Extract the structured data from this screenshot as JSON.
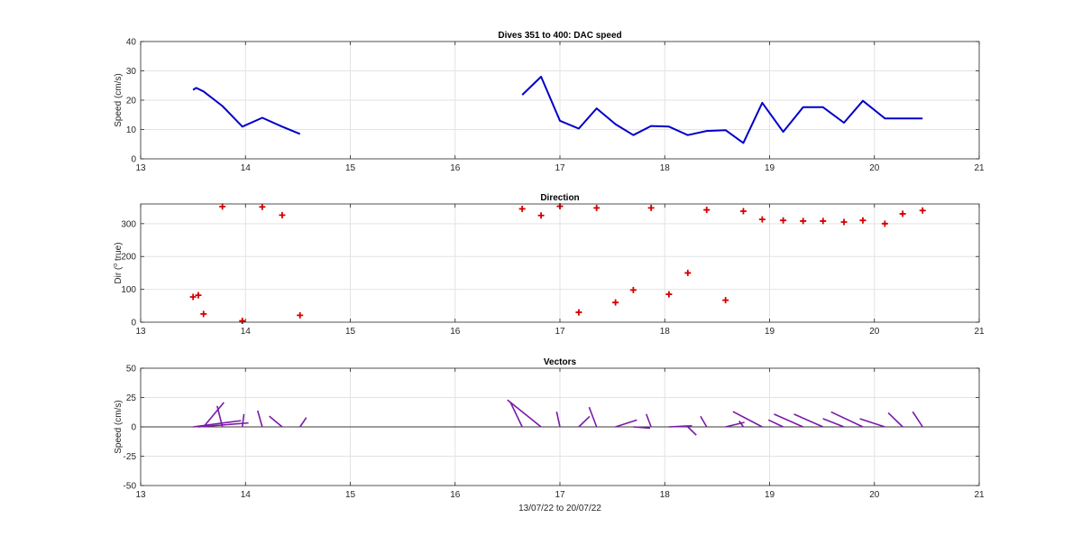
{
  "chart_data": [
    {
      "type": "line",
      "title": "Dives 351 to 400: DAC speed",
      "xlabel": "",
      "ylabel": "Speed (cm/s)",
      "xlim": [
        13,
        21
      ],
      "ylim": [
        0,
        40
      ],
      "xticks": [
        "13",
        "14",
        "15",
        "16",
        "17",
        "18",
        "19",
        "20",
        "21"
      ],
      "yticks": [
        "0",
        "10",
        "20",
        "30",
        "40"
      ],
      "grid": true,
      "series_color": "#0000c8",
      "segments": [
        [
          [
            13.5,
            23.5
          ],
          [
            13.53,
            24.2
          ],
          [
            13.6,
            23.0
          ],
          [
            13.78,
            18.0
          ],
          [
            13.97,
            11.0
          ],
          [
            14.16,
            14.0
          ],
          [
            14.35,
            11.0
          ],
          [
            14.52,
            8.5
          ]
        ],
        [
          [
            16.64,
            21.8
          ],
          [
            16.82,
            28.0
          ],
          [
            17.0,
            13.0
          ],
          [
            17.18,
            10.3
          ],
          [
            17.35,
            17.2
          ],
          [
            17.53,
            11.8
          ],
          [
            17.7,
            8.1
          ],
          [
            17.87,
            11.2
          ],
          [
            18.04,
            11.0
          ],
          [
            18.22,
            8.1
          ],
          [
            18.4,
            9.5
          ],
          [
            18.58,
            9.8
          ],
          [
            18.75,
            5.4
          ],
          [
            18.93,
            19.1
          ],
          [
            19.13,
            9.2
          ],
          [
            19.32,
            17.6
          ],
          [
            19.51,
            17.6
          ],
          [
            19.71,
            12.3
          ],
          [
            19.89,
            19.8
          ],
          [
            20.1,
            13.8
          ],
          [
            20.27,
            13.8
          ],
          [
            20.46,
            13.8
          ]
        ]
      ]
    },
    {
      "type": "scatter",
      "title": "Direction",
      "xlabel": "",
      "ylabel": "Dir (° true)",
      "ylabel_parts": [
        "Dir (",
        "o",
        " true)"
      ],
      "xlim": [
        13,
        21
      ],
      "ylim": [
        0,
        360
      ],
      "xticks": [
        "13",
        "14",
        "15",
        "16",
        "17",
        "18",
        "19",
        "20",
        "21"
      ],
      "yticks": [
        "0",
        "100",
        "200",
        "300"
      ],
      "grid": true,
      "marker": "+",
      "series_color": "#d40000",
      "points": [
        [
          13.5,
          77
        ],
        [
          13.55,
          82
        ],
        [
          13.6,
          25
        ],
        [
          13.78,
          352
        ],
        [
          13.97,
          4
        ],
        [
          14.16,
          351
        ],
        [
          14.35,
          326
        ],
        [
          14.52,
          21
        ],
        [
          16.64,
          345
        ],
        [
          16.82,
          325
        ],
        [
          17.0,
          353
        ],
        [
          17.18,
          30
        ],
        [
          17.35,
          348
        ],
        [
          17.53,
          60
        ],
        [
          17.7,
          98
        ],
        [
          17.87,
          348
        ],
        [
          18.04,
          85
        ],
        [
          18.22,
          150
        ],
        [
          18.4,
          342
        ],
        [
          18.58,
          67
        ],
        [
          18.75,
          338
        ],
        [
          18.93,
          313
        ],
        [
          19.13,
          310
        ],
        [
          19.32,
          308
        ],
        [
          19.51,
          308
        ],
        [
          19.71,
          305
        ],
        [
          19.89,
          310
        ],
        [
          20.1,
          300
        ],
        [
          20.27,
          330
        ],
        [
          20.46,
          340
        ]
      ]
    },
    {
      "type": "vector",
      "title": "Vectors",
      "xlabel": "13/07/22 to 20/07/22",
      "ylabel": "Speed (cm/s)",
      "xlim": [
        13,
        21
      ],
      "ylim": [
        -50,
        50
      ],
      "xticks": [
        "13",
        "14",
        "15",
        "16",
        "17",
        "18",
        "19",
        "20",
        "21"
      ],
      "yticks": [
        "-50",
        "-25",
        "0",
        "25",
        "50"
      ],
      "grid": true,
      "series_color": "#7a1aa8",
      "vectors": [
        [
          13.5,
          77,
          23.5
        ],
        [
          13.55,
          82,
          24.2
        ],
        [
          13.6,
          25,
          23.0
        ],
        [
          13.78,
          352,
          18.0
        ],
        [
          13.97,
          4,
          11.0
        ],
        [
          14.16,
          351,
          14.0
        ],
        [
          14.35,
          326,
          11.0
        ],
        [
          14.52,
          21,
          8.5
        ],
        [
          16.64,
          345,
          21.8
        ],
        [
          16.82,
          325,
          28.0
        ],
        [
          17.0,
          353,
          13.0
        ],
        [
          17.18,
          30,
          10.3
        ],
        [
          17.35,
          348,
          17.2
        ],
        [
          17.53,
          60,
          11.8
        ],
        [
          17.7,
          98,
          8.1
        ],
        [
          17.87,
          348,
          11.2
        ],
        [
          18.04,
          85,
          11.0
        ],
        [
          18.22,
          150,
          8.1
        ],
        [
          18.4,
          342,
          9.5
        ],
        [
          18.58,
          67,
          9.8
        ],
        [
          18.75,
          338,
          5.4
        ],
        [
          18.93,
          313,
          19.1
        ],
        [
          19.13,
          310,
          9.2
        ],
        [
          19.32,
          308,
          17.6
        ],
        [
          19.51,
          308,
          17.6
        ],
        [
          19.71,
          305,
          12.3
        ],
        [
          19.89,
          310,
          19.8
        ],
        [
          20.1,
          300,
          13.8
        ],
        [
          20.27,
          330,
          13.8
        ],
        [
          20.46,
          340,
          13.8
        ]
      ]
    }
  ]
}
